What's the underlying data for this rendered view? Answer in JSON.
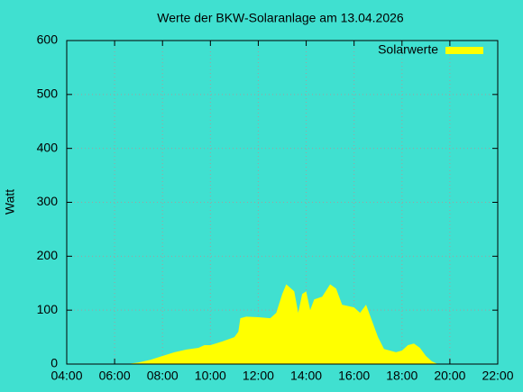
{
  "chart_data": {
    "type": "area",
    "title": "Werte der BKW-Solaranlage am 13.04.2026",
    "y_label": "Watt",
    "series": [
      {
        "name": "Solarwerte",
        "color": "#ffff00",
        "x": [
          "06:30",
          "07:00",
          "07:30",
          "08:00",
          "08:30",
          "09:00",
          "09:30",
          "09:45",
          "10:00",
          "10:30",
          "11:00",
          "11:10",
          "11:15",
          "11:30",
          "12:00",
          "12:30",
          "12:45",
          "13:00",
          "13:10",
          "13:30",
          "13:40",
          "13:50",
          "14:00",
          "14:10",
          "14:20",
          "14:40",
          "15:00",
          "15:15",
          "15:30",
          "16:00",
          "16:15",
          "16:30",
          "16:45",
          "17:00",
          "17:15",
          "17:45",
          "18:00",
          "18:15",
          "18:30",
          "18:45",
          "19:00",
          "19:15",
          "19:30"
        ],
        "values": [
          0,
          3,
          8,
          15,
          22,
          27,
          30,
          35,
          35,
          42,
          50,
          60,
          85,
          88,
          87,
          85,
          95,
          130,
          148,
          135,
          95,
          130,
          135,
          100,
          120,
          125,
          148,
          140,
          110,
          105,
          95,
          110,
          80,
          50,
          28,
          22,
          25,
          35,
          38,
          30,
          15,
          5,
          0
        ]
      }
    ],
    "xlim": [
      "04:00",
      "22:00"
    ],
    "xticks": [
      "04:00",
      "06:00",
      "08:00",
      "10:00",
      "12:00",
      "14:00",
      "16:00",
      "18:00",
      "20:00",
      "22:00"
    ],
    "ylim": [
      0,
      600
    ],
    "yticks": [
      0,
      100,
      200,
      300,
      400,
      500,
      600
    ],
    "grid": true,
    "legend": "top-right"
  }
}
